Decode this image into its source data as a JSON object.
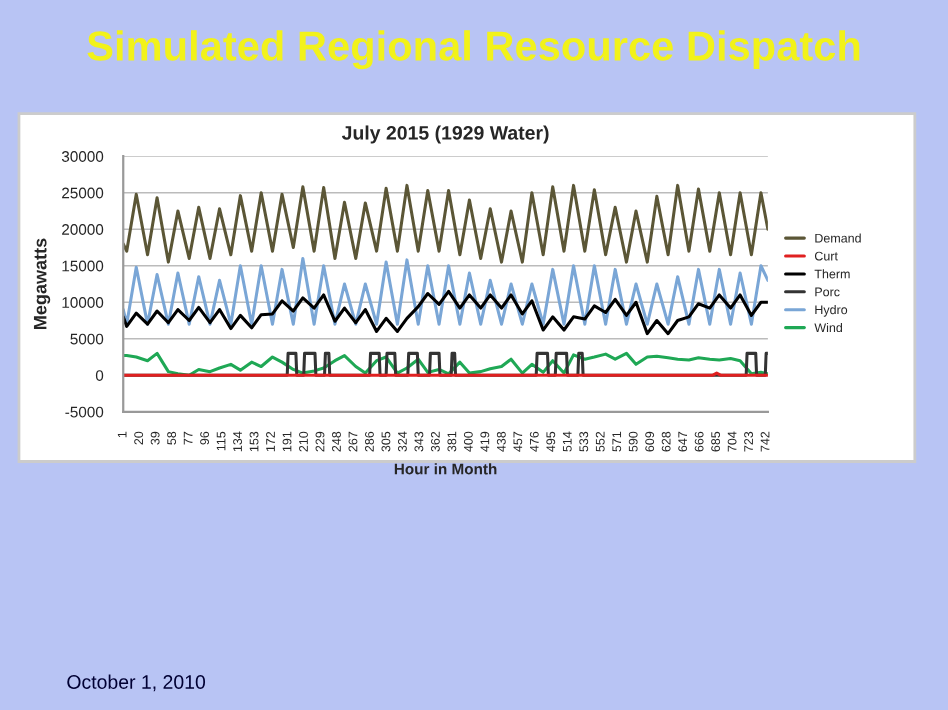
{
  "chart_data": {
    "type": "line",
    "title": "Simulated Regional Resource Dispatch",
    "subtitle": "July 2015 (1929 Water)",
    "xlabel": "Hour in Month",
    "ylabel": "Megawatts",
    "annotations": [
      "October 1, 2010"
    ],
    "x": [
      1,
      5,
      16,
      29,
      40,
      53,
      64,
      77,
      88,
      101,
      112,
      125,
      136,
      149,
      160,
      173,
      184,
      197,
      208,
      221,
      232,
      245,
      256,
      269,
      280,
      293,
      304,
      317,
      328,
      341,
      352,
      365,
      376,
      389,
      400,
      413,
      424,
      437,
      448,
      461,
      472,
      485,
      496,
      509,
      520,
      533,
      544,
      557,
      568,
      581,
      592,
      605,
      616,
      629,
      640,
      653,
      664,
      677,
      688,
      701,
      712,
      725,
      736,
      744
    ],
    "series": [
      {
        "name": "Demand",
        "color": "#5b5636",
        "values": [
          18000,
          17000,
          24800,
          16500,
          24300,
          15500,
          22500,
          16000,
          23000,
          16000,
          22800,
          16500,
          24600,
          17000,
          25000,
          17000,
          24800,
          17500,
          25800,
          17000,
          25700,
          16000,
          23700,
          16000,
          23600,
          17000,
          25600,
          17000,
          26000,
          17000,
          25300,
          17000,
          25300,
          16500,
          24000,
          16000,
          22800,
          15500,
          22500,
          15500,
          25000,
          16500,
          25800,
          17000,
          26000,
          17000,
          25400,
          16500,
          23000,
          15500,
          22500,
          15500,
          24500,
          16500,
          26000,
          17000,
          25500,
          17000,
          25000,
          16500,
          25000,
          16500,
          25000,
          20000
        ]
      },
      {
        "name": "Curt",
        "color": "#e02020",
        "x": [
          1,
          680,
          685,
          690,
          744
        ],
        "values": [
          0,
          0,
          300,
          0,
          0
        ]
      },
      {
        "name": "Therm",
        "color": "#000000",
        "values": [
          8000,
          6700,
          8500,
          7000,
          8800,
          7200,
          9000,
          7500,
          9300,
          7200,
          9000,
          6400,
          8200,
          6500,
          8300,
          8400,
          10200,
          8800,
          10600,
          9200,
          11000,
          7400,
          9200,
          7200,
          9000,
          6000,
          7800,
          6000,
          7800,
          9400,
          11200,
          9700,
          11500,
          9200,
          11000,
          9200,
          11000,
          9200,
          11000,
          8400,
          10200,
          6200,
          8000,
          6200,
          8000,
          7700,
          9500,
          8600,
          10400,
          8200,
          10000,
          5700,
          7500,
          5700,
          7500,
          8000,
          9800,
          9200,
          11000,
          9200,
          11000,
          8200,
          10000,
          10000
        ]
      },
      {
        "name": "Porc",
        "color": "#333333",
        "x": [
          1,
          190,
          191,
          200,
          201,
          209,
          210,
          222,
          223,
          233,
          234,
          238,
          239,
          285,
          286,
          296,
          297,
          304,
          305,
          314,
          315,
          329,
          330,
          340,
          341,
          354,
          355,
          365,
          366,
          379,
          380,
          383,
          384,
          477,
          478,
          490,
          491,
          499,
          500,
          512,
          513,
          525,
          526,
          530,
          531,
          719,
          720,
          730,
          731,
          741,
          742,
          744
        ],
        "values": [
          0,
          0,
          3000,
          3000,
          0,
          0,
          3000,
          3000,
          0,
          0,
          3000,
          3000,
          0,
          0,
          3000,
          3000,
          0,
          0,
          3000,
          3000,
          0,
          0,
          3000,
          3000,
          0,
          0,
          3000,
          3000,
          0,
          0,
          3000,
          3000,
          0,
          0,
          3000,
          3000,
          0,
          0,
          3000,
          3000,
          0,
          0,
          3000,
          3000,
          0,
          0,
          3000,
          3000,
          0,
          0,
          3000,
          3000
        ]
      },
      {
        "name": "Hydro",
        "color": "#7aa6d6",
        "values": [
          9000,
          7000,
          14800,
          7000,
          13800,
          7000,
          14000,
          7000,
          13500,
          7000,
          13000,
          7000,
          15000,
          7000,
          15000,
          7000,
          14500,
          7000,
          16000,
          7000,
          15000,
          7000,
          12500,
          7000,
          12500,
          7000,
          15500,
          7000,
          15800,
          7000,
          15000,
          7000,
          15000,
          7000,
          14000,
          7000,
          13000,
          7000,
          12500,
          7000,
          12500,
          7000,
          14500,
          7000,
          15000,
          7000,
          15000,
          7000,
          14500,
          7000,
          12500,
          7000,
          12500,
          7000,
          13500,
          7000,
          14500,
          7000,
          14500,
          7000,
          14000,
          7000,
          15000,
          13000
        ]
      },
      {
        "name": "Wind",
        "color": "#1fa855",
        "values": [
          2700,
          2700,
          2500,
          2000,
          3000,
          500,
          200,
          0,
          800,
          500,
          1000,
          1500,
          700,
          1800,
          1200,
          2500,
          1800,
          800,
          300,
          600,
          1000,
          2000,
          2700,
          1200,
          300,
          2000,
          2500,
          300,
          1000,
          2200,
          400,
          800,
          200,
          1800,
          300,
          500,
          900,
          1200,
          2200,
          300,
          1500,
          400,
          2000,
          300,
          2800,
          2200,
          2500,
          2900,
          2200,
          3000,
          1500,
          2500,
          2600,
          2400,
          2200,
          2100,
          2400,
          2200,
          2100,
          2300,
          2000,
          200,
          400,
          200
        ]
      }
    ],
    "xlim": [
      1,
      744
    ],
    "xticks": [
      1,
      20,
      39,
      58,
      77,
      96,
      115,
      134,
      153,
      172,
      191,
      210,
      229,
      248,
      267,
      286,
      305,
      324,
      343,
      362,
      381,
      400,
      419,
      438,
      457,
      476,
      495,
      514,
      533,
      552,
      571,
      590,
      609,
      628,
      647,
      666,
      685,
      704,
      723,
      742
    ],
    "ylim": [
      -5000,
      30000
    ],
    "yticks": [
      -5000,
      0,
      5000,
      10000,
      15000,
      20000,
      25000,
      30000
    ],
    "grid": "y",
    "legend": "right",
    "line_style": "solid",
    "marker": "none"
  }
}
